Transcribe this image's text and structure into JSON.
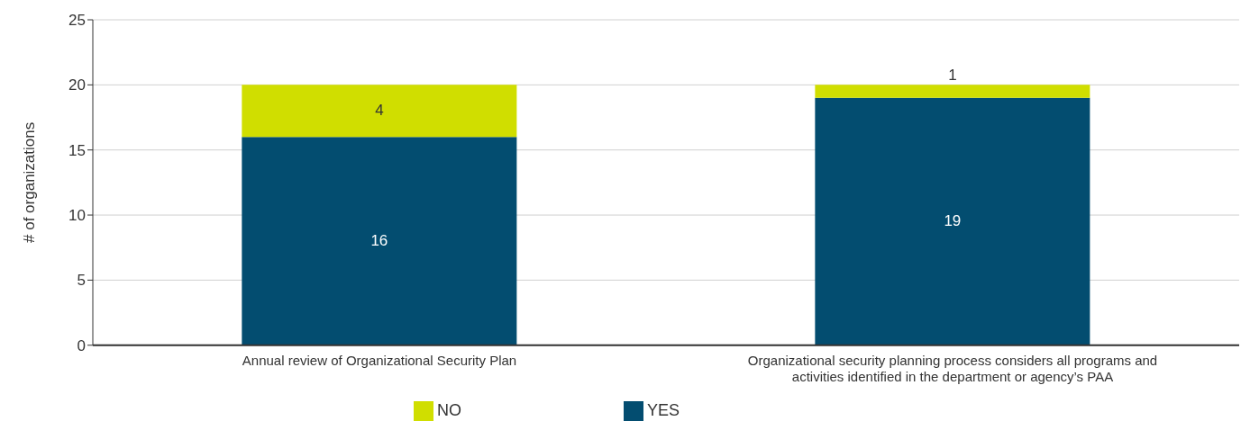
{
  "chart_data": {
    "type": "bar",
    "stacked": true,
    "ylabel": "# of organizations",
    "categories": [
      "Annual review of Organizational Security Plan",
      "Organizational security planning process considers all programs and activities identified in the department or agency’s PAA"
    ],
    "series": [
      {
        "name": "YES",
        "color": "#034d70",
        "values": [
          16,
          19
        ]
      },
      {
        "name": "NO",
        "color": "#d0de00",
        "values": [
          4,
          1
        ]
      }
    ],
    "ylim": [
      0,
      25
    ],
    "yticks": [
      0,
      5,
      10,
      15,
      20,
      25
    ],
    "grid": "y",
    "legend": "bottom",
    "data_labels": true
  }
}
